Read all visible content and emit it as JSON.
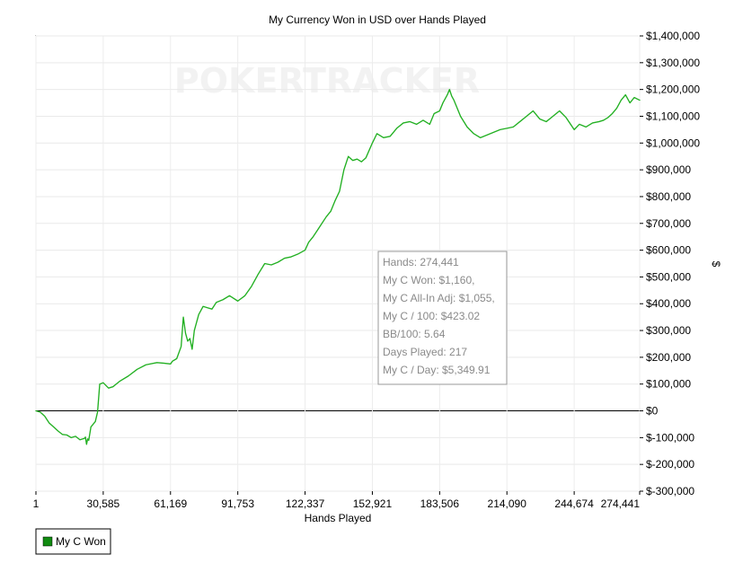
{
  "chart_data": {
    "type": "line",
    "title": "My Currency Won in USD over Hands Played",
    "xlabel": "Hands Played",
    "ylabel": "$",
    "xlim": [
      1,
      274441
    ],
    "ylim": [
      -300000,
      1400000
    ],
    "x_ticks": [
      "1",
      "30,585",
      "61,169",
      "91,753",
      "122,337",
      "152,921",
      "183,506",
      "214,090",
      "244,674",
      "274,441"
    ],
    "y_ticks": [
      "$1,400,000",
      "$1,300,000",
      "$1,200,000",
      "$1,100,000",
      "$1,000,000",
      "$900,000",
      "$800,000",
      "$700,000",
      "$600,000",
      "$500,000",
      "$400,000",
      "$300,000",
      "$200,000",
      "$100,000",
      "$0",
      "$-100,000",
      "$-200,000",
      "$-300,000"
    ],
    "grid": true,
    "legend": {
      "placement": "bottom-left",
      "entries": [
        {
          "name": "My C Won",
          "color": "#118b11"
        }
      ]
    },
    "watermark": "POKERTRACKER",
    "tooltip": {
      "lines": [
        "Hands: 274,441",
        "My C Won: $1,160,",
        "My C All-In Adj: $1,055,",
        "My C / 100: $423.02",
        "BB/100: 5.64",
        "Days Played: 217",
        "My C / Day: $5,349.91"
      ]
    },
    "series": [
      {
        "name": "My C Won",
        "color": "#22b022",
        "x": [
          1,
          2000,
          4000,
          6000,
          8000,
          10000,
          12000,
          14000,
          16000,
          18000,
          20000,
          22000,
          22500,
          23000,
          23500,
          24000,
          25000,
          26000,
          27000,
          28000,
          29000,
          30585,
          33000,
          35000,
          38000,
          42000,
          46000,
          50000,
          55000,
          58000,
          61169,
          62000,
          64000,
          66000,
          67000,
          68000,
          69000,
          70000,
          71000,
          72000,
          74000,
          76000,
          78000,
          80000,
          82000,
          85000,
          88000,
          91753,
          95000,
          98000,
          101000,
          104000,
          107000,
          110000,
          113000,
          116000,
          119000,
          122337,
          124000,
          126000,
          128000,
          130000,
          132000,
          134000,
          136000,
          138000,
          140000,
          142000,
          144000,
          146000,
          148000,
          150000,
          152921,
          155000,
          158000,
          161000,
          164000,
          167000,
          170000,
          173000,
          176000,
          179000,
          181000,
          183506,
          185000,
          186000,
          187000,
          188000,
          189000,
          190000,
          191000,
          193000,
          196000,
          199000,
          202000,
          205000,
          208000,
          211000,
          214090,
          217000,
          220000,
          223000,
          226000,
          229000,
          232000,
          235000,
          238000,
          241000,
          244674,
          247000,
          250000,
          253000,
          256000,
          258000,
          260000,
          262000,
          264000,
          266000,
          268000,
          270000,
          272000,
          274441
        ],
        "y": [
          0,
          -5000,
          -20000,
          -45000,
          -60000,
          -75000,
          -88000,
          -90000,
          -100000,
          -95000,
          -108000,
          -103000,
          -98000,
          -125000,
          -105000,
          -110000,
          -60000,
          -50000,
          -40000,
          -5000,
          100000,
          105000,
          85000,
          90000,
          110000,
          130000,
          155000,
          172000,
          180000,
          178000,
          175000,
          185000,
          195000,
          240000,
          350000,
          290000,
          260000,
          270000,
          230000,
          300000,
          360000,
          390000,
          385000,
          380000,
          405000,
          415000,
          430000,
          410000,
          430000,
          465000,
          510000,
          550000,
          545000,
          555000,
          570000,
          575000,
          585000,
          600000,
          630000,
          650000,
          675000,
          700000,
          725000,
          745000,
          785000,
          820000,
          900000,
          950000,
          935000,
          940000,
          930000,
          945000,
          1000000,
          1035000,
          1020000,
          1025000,
          1055000,
          1075000,
          1080000,
          1070000,
          1085000,
          1070000,
          1110000,
          1120000,
          1150000,
          1165000,
          1180000,
          1200000,
          1175000,
          1160000,
          1140000,
          1100000,
          1060000,
          1035000,
          1020000,
          1030000,
          1040000,
          1050000,
          1055000,
          1060000,
          1080000,
          1100000,
          1120000,
          1090000,
          1080000,
          1100000,
          1120000,
          1095000,
          1050000,
          1070000,
          1060000,
          1075000,
          1080000,
          1085000,
          1095000,
          1110000,
          1130000,
          1160000,
          1180000,
          1150000,
          1170000,
          1160000
        ]
      }
    ]
  }
}
